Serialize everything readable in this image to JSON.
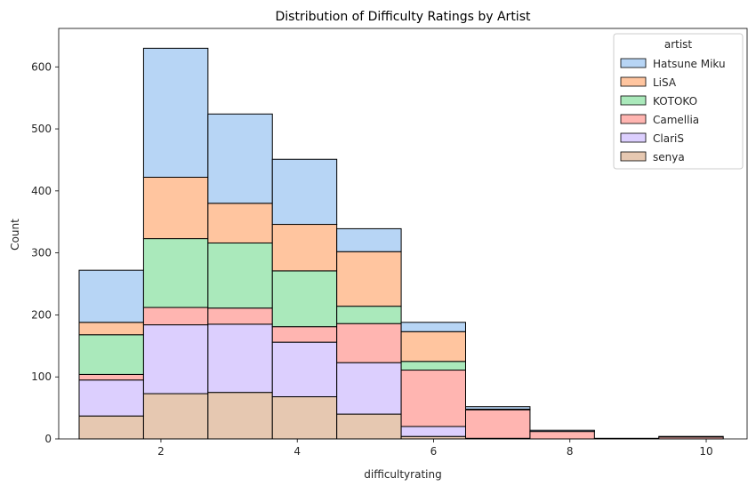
{
  "chart_data": {
    "type": "bar",
    "stacked": true,
    "title": "Distribution of Difficulty Ratings by Artist",
    "xlabel": "difficultyrating",
    "ylabel": "Count",
    "xlim": [
      0.5,
      10.6
    ],
    "ylim": [
      0,
      662
    ],
    "xticks": [
      2,
      4,
      6,
      8,
      10
    ],
    "yticks": [
      0,
      100,
      200,
      300,
      400,
      500,
      600
    ],
    "bin_edges": [
      0.8,
      1.745,
      2.69,
      3.635,
      4.58,
      5.525,
      6.47,
      7.415,
      8.36,
      9.305,
      10.25
    ],
    "legend": {
      "title": "artist",
      "position": "top-right"
    },
    "grid": false,
    "series": [
      {
        "name": "senya",
        "color": "#e6c8b1",
        "values": [
          37,
          73,
          75,
          68,
          40,
          4,
          1,
          0,
          0,
          0
        ]
      },
      {
        "name": "ClariS",
        "color": "#dccffe",
        "values": [
          58,
          111,
          110,
          88,
          83,
          16,
          0,
          0,
          0,
          0
        ]
      },
      {
        "name": "Camellia",
        "color": "#ffb5b1",
        "values": [
          9,
          28,
          26,
          25,
          63,
          91,
          46,
          12,
          1,
          3
        ]
      },
      {
        "name": "KOTOKO",
        "color": "#aae9bb",
        "values": [
          64,
          111,
          105,
          90,
          28,
          14,
          0,
          0,
          0,
          0
        ]
      },
      {
        "name": "LiSA",
        "color": "#ffc59f",
        "values": [
          20,
          99,
          64,
          75,
          88,
          48,
          1,
          0,
          0,
          0
        ]
      },
      {
        "name": "Hatsune Miku",
        "color": "#b7d5f5",
        "values": [
          84,
          208,
          144,
          105,
          37,
          15,
          4,
          2,
          0,
          1
        ]
      }
    ],
    "legend_order": [
      "Hatsune Miku",
      "LiSA",
      "KOTOKO",
      "Camellia",
      "ClariS",
      "senya"
    ]
  }
}
